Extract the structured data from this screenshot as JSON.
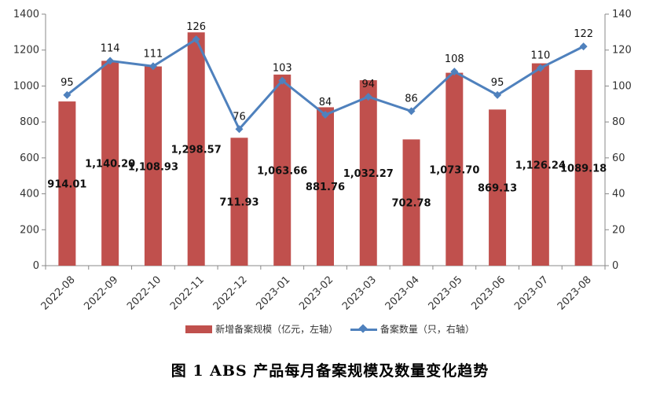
{
  "chart_data": {
    "type": "bar+line",
    "categories": [
      "2022-08",
      "2022-09",
      "2022-10",
      "2022-11",
      "2022-12",
      "2023-01",
      "2023-02",
      "2023-03",
      "2023-04",
      "2023-05",
      "2023-06",
      "2023-07",
      "2023-08"
    ],
    "series": [
      {
        "name": "新增备案规模（亿元，左轴）",
        "type": "bar",
        "axis": "left",
        "color": "#c0504d",
        "values": [
          914.01,
          1140.2,
          1108.93,
          1298.57,
          711.93,
          1063.66,
          881.76,
          1032.27,
          702.78,
          1073.7,
          869.13,
          1126.24,
          1089.18
        ],
        "labels": [
          "914.01",
          "1,140.20",
          "1,108.93",
          "1,298.57",
          "711.93",
          "1,063.66",
          "881.76",
          "1,032.27",
          "702.78",
          "1,073.70",
          "869.13",
          "1,126.24",
          "1089.18"
        ]
      },
      {
        "name": "备案数量（只，右轴）",
        "type": "line",
        "axis": "right",
        "color": "#4f81bd",
        "marker": "diamond",
        "values": [
          95,
          114,
          111,
          126,
          76,
          103,
          84,
          94,
          86,
          108,
          95,
          110,
          122
        ]
      }
    ],
    "y_left": {
      "min": 0,
      "max": 1400,
      "step": 200
    },
    "y_right": {
      "min": 0,
      "max": 140,
      "step": 20
    },
    "grid": false,
    "legend_position": "bottom"
  },
  "caption": "图 1   ABS 产品每月备案规模及数量变化趋势"
}
